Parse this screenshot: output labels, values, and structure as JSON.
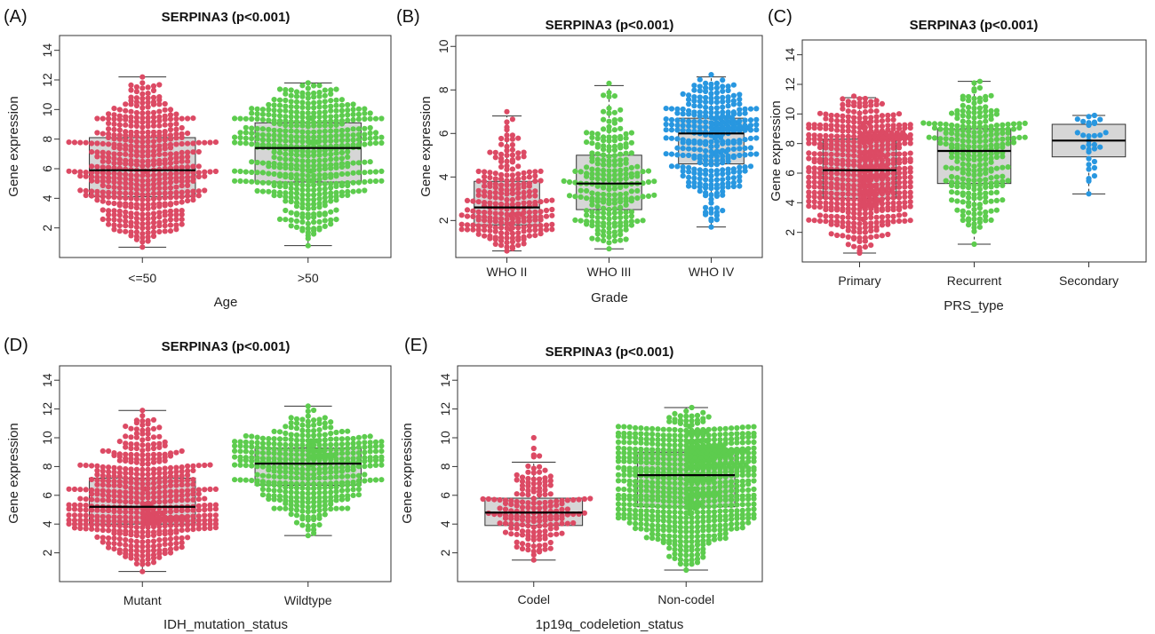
{
  "figure": {
    "background": "#ffffff"
  },
  "colors": {
    "red": "#dc4a64",
    "green": "#5dcc4e",
    "blue": "#2897e0",
    "box_fill": "#d6d6d6"
  },
  "chart_data": [
    {
      "type": "box",
      "panel_label": "(A)",
      "title": "SERPINA3 (p<0.001)",
      "xlabel": "Age",
      "ylabel": "Gene expression",
      "ylim": [
        0,
        15
      ],
      "yticks": [
        2,
        4,
        6,
        8,
        10,
        12,
        14
      ],
      "grid": false,
      "categories": [
        "<=50",
        ">50"
      ],
      "series": [
        {
          "category": "<=50",
          "color": "red",
          "n_points": 480,
          "q1": 4.1,
          "median": 5.9,
          "q3": 8.1,
          "whisker_low": 0.7,
          "whisker_high": 12.2,
          "max": 12.2
        },
        {
          "category": ">50",
          "color": "green",
          "n_points": 500,
          "q1": 5.1,
          "median": 7.4,
          "q3": 9.1,
          "whisker_low": 0.8,
          "whisker_high": 11.8,
          "max": 11.8
        }
      ]
    },
    {
      "type": "box",
      "panel_label": "(B)",
      "title": "SERPINA3 (p<0.001)",
      "xlabel": "Grade",
      "ylabel": "Gene expression",
      "ylim": [
        0.3,
        10.5
      ],
      "yticks": [
        2,
        4,
        6,
        8,
        10
      ],
      "grid": false,
      "categories": [
        "WHO II",
        "WHO III",
        "WHO IV"
      ],
      "series": [
        {
          "category": "WHO II",
          "color": "red",
          "n_points": 240,
          "q1": 1.8,
          "median": 2.6,
          "q3": 3.8,
          "whisker_low": 0.6,
          "whisker_high": 6.8,
          "max": 7.0
        },
        {
          "category": "WHO III",
          "color": "green",
          "n_points": 230,
          "q1": 2.5,
          "median": 3.7,
          "q3": 5.0,
          "whisker_low": 0.7,
          "whisker_high": 8.2,
          "max": 8.3
        },
        {
          "category": "WHO IV",
          "color": "blue",
          "n_points": 330,
          "q1": 4.6,
          "median": 6.0,
          "q3": 6.7,
          "whisker_low": 1.7,
          "whisker_high": 8.6,
          "max": 8.7
        }
      ]
    },
    {
      "type": "box",
      "panel_label": "(C)",
      "title": "SERPINA3 (p<0.001)",
      "xlabel": "PRS_type",
      "ylabel": "Gene expression",
      "ylim": [
        0,
        15
      ],
      "yticks": [
        2,
        4,
        6,
        8,
        10,
        12,
        14
      ],
      "grid": false,
      "categories": [
        "Primary",
        "Recurrent",
        "Secondary"
      ],
      "series": [
        {
          "category": "Primary",
          "color": "red",
          "n_points": 600,
          "q1": 4.3,
          "median": 6.2,
          "q3": 8.3,
          "whisker_low": 0.6,
          "whisker_high": 11.1,
          "max": 11.2
        },
        {
          "category": "Recurrent",
          "color": "green",
          "n_points": 260,
          "q1": 5.3,
          "median": 7.5,
          "q3": 9.0,
          "whisker_low": 1.2,
          "whisker_high": 12.2,
          "max": 12.2
        },
        {
          "category": "Secondary",
          "color": "blue",
          "n_points": 30,
          "q1": 7.1,
          "median": 8.2,
          "q3": 9.3,
          "whisker_low": 4.6,
          "whisker_high": 9.9,
          "max": 9.9
        }
      ]
    },
    {
      "type": "box",
      "panel_label": "(D)",
      "title": "SERPINA3 (p<0.001)",
      "xlabel": "IDH_mutation_status",
      "ylabel": "Gene expression",
      "ylim": [
        0,
        15
      ],
      "yticks": [
        2,
        4,
        6,
        8,
        10,
        12,
        14
      ],
      "grid": false,
      "categories": [
        "Mutant",
        "Wildtype"
      ],
      "series": [
        {
          "category": "Mutant",
          "color": "red",
          "n_points": 520,
          "q1": 4.0,
          "median": 5.2,
          "q3": 7.2,
          "whisker_low": 0.7,
          "whisker_high": 11.9,
          "max": 11.9
        },
        {
          "category": "Wildtype",
          "color": "green",
          "n_points": 420,
          "q1": 6.7,
          "median": 8.2,
          "q3": 9.3,
          "whisker_low": 3.2,
          "whisker_high": 12.2,
          "max": 12.2
        }
      ]
    },
    {
      "type": "box",
      "panel_label": "(E)",
      "title": "SERPINA3 (p<0.001)",
      "xlabel": "1p19q_codeletion_status",
      "ylabel": "Gene expression",
      "ylim": [
        0,
        15
      ],
      "yticks": [
        2,
        4,
        6,
        8,
        10,
        12,
        14
      ],
      "grid": false,
      "categories": [
        "Codel",
        "Non-codel"
      ],
      "series": [
        {
          "category": "Codel",
          "color": "red",
          "n_points": 170,
          "q1": 3.9,
          "median": 4.8,
          "q3": 5.8,
          "whisker_low": 1.5,
          "whisker_high": 8.3,
          "max": 10.0
        },
        {
          "category": "Non-codel",
          "color": "green",
          "n_points": 760,
          "q1": 5.2,
          "median": 7.4,
          "q3": 9.0,
          "whisker_low": 0.8,
          "whisker_high": 12.1,
          "max": 12.1
        }
      ]
    }
  ]
}
